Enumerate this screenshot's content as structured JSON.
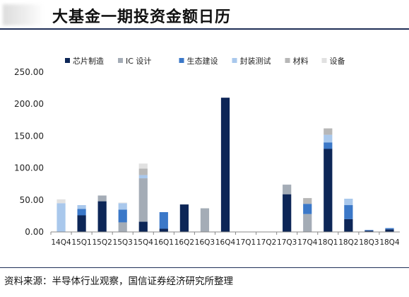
{
  "page": {
    "title": "大基金一期投资金额日历",
    "source": "资料来源：半导体行业观察，国信证券经济研究所整理"
  },
  "chart_data": {
    "type": "bar",
    "stacked": true,
    "categories": [
      "14Q4",
      "15Q1",
      "15Q2",
      "15Q3",
      "15Q4",
      "16Q1",
      "16Q2",
      "16Q3",
      "16Q4",
      "17Q1",
      "17Q2",
      "17Q3",
      "17Q4",
      "18Q1",
      "18Q2",
      "18Q3",
      "18Q4"
    ],
    "ylim": [
      0,
      250
    ],
    "yticks": [
      "0.00",
      "50.00",
      "100.00",
      "150.00",
      "200.00",
      "250.00"
    ],
    "grid": false,
    "legend_position": "top",
    "series": [
      {
        "name": "芯片制造",
        "color": "#0d2657",
        "values": [
          0,
          26,
          48,
          0,
          16,
          5,
          43,
          0,
          210,
          0,
          0,
          59,
          0,
          130,
          20,
          2,
          4
        ]
      },
      {
        "name": "IC 设计",
        "color": "#a4acb6",
        "values": [
          0,
          0,
          9,
          15,
          68,
          0,
          0,
          37,
          0,
          0,
          0,
          15,
          28,
          0,
          0,
          0,
          0
        ]
      },
      {
        "name": "生态建设",
        "color": "#3b78c8",
        "values": [
          0,
          10,
          0,
          20,
          0,
          26,
          0,
          0,
          0,
          0,
          0,
          0,
          16,
          10,
          22,
          1,
          2
        ]
      },
      {
        "name": "封装测试",
        "color": "#a9c8ec",
        "values": [
          45,
          6,
          0,
          10,
          5,
          0,
          0,
          0,
          0,
          0,
          0,
          0,
          0,
          12,
          10,
          0,
          0
        ]
      },
      {
        "name": "材料",
        "color": "#b7b7b7",
        "values": [
          0,
          0,
          0,
          0,
          10,
          0,
          0,
          0,
          0,
          0,
          0,
          0,
          9,
          10,
          0,
          0,
          0
        ]
      },
      {
        "name": "设备",
        "color": "#e1e1e1",
        "values": [
          6,
          0,
          0,
          1,
          8,
          0,
          0,
          0,
          0,
          0,
          0,
          0,
          0,
          0,
          0,
          0,
          0
        ]
      }
    ]
  }
}
